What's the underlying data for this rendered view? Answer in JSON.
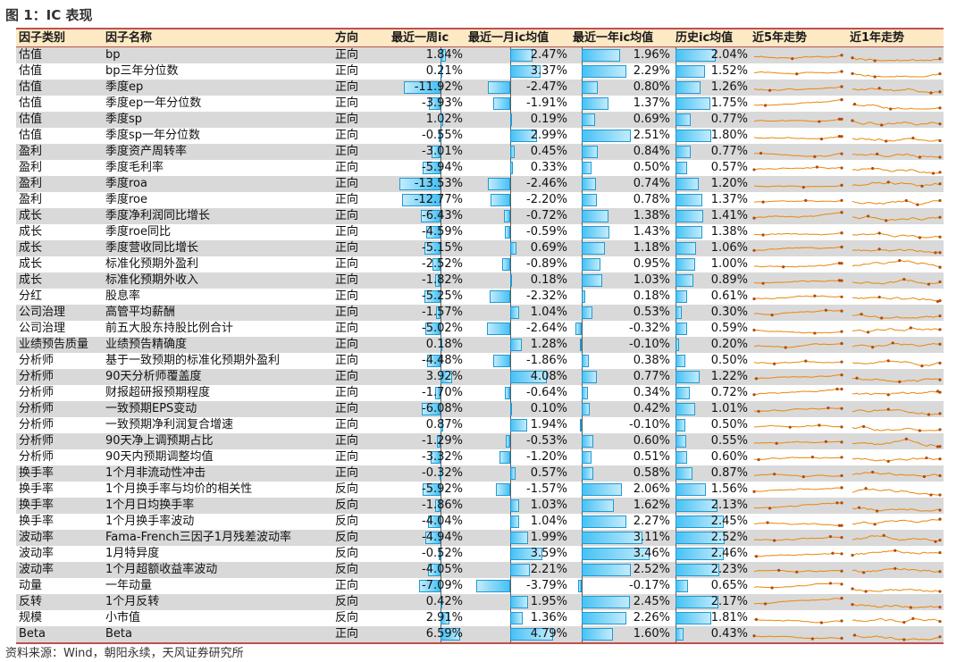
{
  "figure_title": "图 1：IC 表现",
  "source": "资料来源：Wind，朝阳永续，天风证券研究所",
  "colors": {
    "header_bg": "#fde9c4",
    "rule": "#c0504d",
    "bar": "#47c2f5",
    "spark": "#e8880c"
  },
  "headers": {
    "category": "因子类别",
    "name": "因子名称",
    "direction": "方向",
    "week": "最近一周ic",
    "month": "最近一月ic均值",
    "year": "最近一年ic均值",
    "hist": "历史ic均值",
    "trend5": "近5年走势",
    "trend1": "近1年走势"
  },
  "rows": [
    {
      "category": "估值",
      "name": "bp",
      "direction": "正向",
      "week": "1.84%",
      "week_v": 1.84,
      "month": "2.47%",
      "month_v": 2.47,
      "year": "1.96%",
      "year_v": 1.96,
      "hist": "2.04%",
      "hist_v": 2.04
    },
    {
      "category": "估值",
      "name": "bp三年分位数",
      "direction": "正向",
      "week": "0.21%",
      "week_v": 0.21,
      "month": "3.37%",
      "month_v": 3.37,
      "year": "2.29%",
      "year_v": 2.29,
      "hist": "1.52%",
      "hist_v": 1.52
    },
    {
      "category": "估值",
      "name": "季度ep",
      "direction": "正向",
      "week": "-11.92%",
      "week_v": -11.92,
      "month": "-2.47%",
      "month_v": -2.47,
      "year": "0.80%",
      "year_v": 0.8,
      "hist": "1.26%",
      "hist_v": 1.26
    },
    {
      "category": "估值",
      "name": "季度ep一年分位数",
      "direction": "正向",
      "week": "-3.93%",
      "week_v": -3.93,
      "month": "-1.91%",
      "month_v": -1.91,
      "year": "1.37%",
      "year_v": 1.37,
      "hist": "1.75%",
      "hist_v": 1.75
    },
    {
      "category": "估值",
      "name": "季度sp",
      "direction": "正向",
      "week": "1.02%",
      "week_v": 1.02,
      "month": "0.19%",
      "month_v": 0.19,
      "year": "0.69%",
      "year_v": 0.69,
      "hist": "0.77%",
      "hist_v": 0.77
    },
    {
      "category": "估值",
      "name": "季度sp一年分位数",
      "direction": "正向",
      "week": "-0.55%",
      "week_v": -0.55,
      "month": "2.99%",
      "month_v": 2.99,
      "year": "2.51%",
      "year_v": 2.51,
      "hist": "1.80%",
      "hist_v": 1.8
    },
    {
      "category": "盈利",
      "name": "季度资产周转率",
      "direction": "正向",
      "week": "-3.01%",
      "week_v": -3.01,
      "month": "0.45%",
      "month_v": 0.45,
      "year": "0.84%",
      "year_v": 0.84,
      "hist": "0.77%",
      "hist_v": 0.77
    },
    {
      "category": "盈利",
      "name": "季度毛利率",
      "direction": "正向",
      "week": "-5.94%",
      "week_v": -5.94,
      "month": "0.33%",
      "month_v": 0.33,
      "year": "0.50%",
      "year_v": 0.5,
      "hist": "0.57%",
      "hist_v": 0.57
    },
    {
      "category": "盈利",
      "name": "季度roa",
      "direction": "正向",
      "week": "-13.53%",
      "week_v": -13.53,
      "month": "-2.46%",
      "month_v": -2.46,
      "year": "0.74%",
      "year_v": 0.74,
      "hist": "1.20%",
      "hist_v": 1.2
    },
    {
      "category": "盈利",
      "name": "季度roe",
      "direction": "正向",
      "week": "-12.77%",
      "week_v": -12.77,
      "month": "-2.20%",
      "month_v": -2.2,
      "year": "0.78%",
      "year_v": 0.78,
      "hist": "1.37%",
      "hist_v": 1.37
    },
    {
      "category": "成长",
      "name": "季度净利润同比增长",
      "direction": "正向",
      "week": "-6.43%",
      "week_v": -6.43,
      "month": "-0.72%",
      "month_v": -0.72,
      "year": "1.38%",
      "year_v": 1.38,
      "hist": "1.41%",
      "hist_v": 1.41
    },
    {
      "category": "成长",
      "name": "季度roe同比",
      "direction": "正向",
      "week": "-4.59%",
      "week_v": -4.59,
      "month": "-0.59%",
      "month_v": -0.59,
      "year": "1.43%",
      "year_v": 1.43,
      "hist": "1.38%",
      "hist_v": 1.38
    },
    {
      "category": "成长",
      "name": "季度营收同比增长",
      "direction": "正向",
      "week": "-5.15%",
      "week_v": -5.15,
      "month": "0.69%",
      "month_v": 0.69,
      "year": "1.18%",
      "year_v": 1.18,
      "hist": "1.06%",
      "hist_v": 1.06
    },
    {
      "category": "成长",
      "name": "标准化预期外盈利",
      "direction": "正向",
      "week": "-2.52%",
      "week_v": -2.52,
      "month": "-0.89%",
      "month_v": -0.89,
      "year": "0.95%",
      "year_v": 0.95,
      "hist": "1.00%",
      "hist_v": 1.0
    },
    {
      "category": "成长",
      "name": "标准化预期外收入",
      "direction": "正向",
      "week": "-1.82%",
      "week_v": -1.82,
      "month": "0.18%",
      "month_v": 0.18,
      "year": "1.03%",
      "year_v": 1.03,
      "hist": "0.89%",
      "hist_v": 0.89
    },
    {
      "category": "分红",
      "name": "股息率",
      "direction": "正向",
      "week": "-5.25%",
      "week_v": -5.25,
      "month": "-2.32%",
      "month_v": -2.32,
      "year": "0.18%",
      "year_v": 0.18,
      "hist": "0.61%",
      "hist_v": 0.61
    },
    {
      "category": "公司治理",
      "name": "高管平均薪酬",
      "direction": "正向",
      "week": "-1.57%",
      "week_v": -1.57,
      "month": "1.04%",
      "month_v": 1.04,
      "year": "0.53%",
      "year_v": 0.53,
      "hist": "0.30%",
      "hist_v": 0.3
    },
    {
      "category": "公司治理",
      "name": "前五大股东持股比例合计",
      "direction": "正向",
      "week": "-5.02%",
      "week_v": -5.02,
      "month": "-2.64%",
      "month_v": -2.64,
      "year": "-0.32%",
      "year_v": -0.32,
      "hist": "0.59%",
      "hist_v": 0.59
    },
    {
      "category": "业绩预告质量",
      "name": "业绩预告精确度",
      "direction": "正向",
      "week": "0.18%",
      "week_v": 0.18,
      "month": "1.28%",
      "month_v": 1.28,
      "year": "-0.10%",
      "year_v": -0.1,
      "hist": "0.20%",
      "hist_v": 0.2
    },
    {
      "category": "分析师",
      "name": "基于一致预期的标准化预期外盈利",
      "direction": "正向",
      "week": "-4.48%",
      "week_v": -4.48,
      "month": "-1.86%",
      "month_v": -1.86,
      "year": "0.38%",
      "year_v": 0.38,
      "hist": "0.50%",
      "hist_v": 0.5
    },
    {
      "category": "分析师",
      "name": "90天分析师覆盖度",
      "direction": "正向",
      "week": "3.92%",
      "week_v": 3.92,
      "month": "4.08%",
      "month_v": 4.08,
      "year": "0.77%",
      "year_v": 0.77,
      "hist": "1.22%",
      "hist_v": 1.22
    },
    {
      "category": "分析师",
      "name": "财报超研报预期程度",
      "direction": "正向",
      "week": "-1.70%",
      "week_v": -1.7,
      "month": "-0.64%",
      "month_v": -0.64,
      "year": "0.34%",
      "year_v": 0.34,
      "hist": "0.72%",
      "hist_v": 0.72
    },
    {
      "category": "分析师",
      "name": "一致预期EPS变动",
      "direction": "正向",
      "week": "-6.08%",
      "week_v": -6.08,
      "month": "0.10%",
      "month_v": 0.1,
      "year": "0.42%",
      "year_v": 0.42,
      "hist": "1.01%",
      "hist_v": 1.01
    },
    {
      "category": "分析师",
      "name": "一致预期净利润复合增速",
      "direction": "正向",
      "week": "0.87%",
      "week_v": 0.87,
      "month": "1.94%",
      "month_v": 1.94,
      "year": "-0.10%",
      "year_v": -0.1,
      "hist": "0.50%",
      "hist_v": 0.5
    },
    {
      "category": "分析师",
      "name": "90天净上调预期占比",
      "direction": "正向",
      "week": "-1.29%",
      "week_v": -1.29,
      "month": "-0.53%",
      "month_v": -0.53,
      "year": "0.60%",
      "year_v": 0.6,
      "hist": "0.55%",
      "hist_v": 0.55
    },
    {
      "category": "分析师",
      "name": "90天内预期调整均值",
      "direction": "正向",
      "week": "-3.32%",
      "week_v": -3.32,
      "month": "-1.20%",
      "month_v": -1.2,
      "year": "0.51%",
      "year_v": 0.51,
      "hist": "0.60%",
      "hist_v": 0.6
    },
    {
      "category": "换手率",
      "name": "1个月非流动性冲击",
      "direction": "正向",
      "week": "-0.32%",
      "week_v": -0.32,
      "month": "0.57%",
      "month_v": 0.57,
      "year": "0.58%",
      "year_v": 0.58,
      "hist": "0.87%",
      "hist_v": 0.87
    },
    {
      "category": "换手率",
      "name": "1个月换手率与均价的相关性",
      "direction": "反向",
      "week": "-5.92%",
      "week_v": -5.92,
      "month": "-1.57%",
      "month_v": -1.57,
      "year": "2.06%",
      "year_v": 2.06,
      "hist": "1.56%",
      "hist_v": 1.56
    },
    {
      "category": "换手率",
      "name": "1个月日均换手率",
      "direction": "反向",
      "week": "-1.86%",
      "week_v": -1.86,
      "month": "1.03%",
      "month_v": 1.03,
      "year": "1.62%",
      "year_v": 1.62,
      "hist": "2.13%",
      "hist_v": 2.13
    },
    {
      "category": "换手率",
      "name": "1个月换手率波动",
      "direction": "反向",
      "week": "-4.04%",
      "week_v": -4.04,
      "month": "1.04%",
      "month_v": 1.04,
      "year": "2.27%",
      "year_v": 2.27,
      "hist": "2.45%",
      "hist_v": 2.45
    },
    {
      "category": "波动率",
      "name": "Fama-French三因子1月残差波动率",
      "direction": "反向",
      "week": "-4.94%",
      "week_v": -4.94,
      "month": "1.99%",
      "month_v": 1.99,
      "year": "3.11%",
      "year_v": 3.11,
      "hist": "2.52%",
      "hist_v": 2.52
    },
    {
      "category": "波动率",
      "name": "1月特异度",
      "direction": "反向",
      "week": "-0.52%",
      "week_v": -0.52,
      "month": "3.59%",
      "month_v": 3.59,
      "year": "3.46%",
      "year_v": 3.46,
      "hist": "2.46%",
      "hist_v": 2.46
    },
    {
      "category": "波动率",
      "name": "1个月超额收益率波动",
      "direction": "反向",
      "week": "-4.05%",
      "week_v": -4.05,
      "month": "2.21%",
      "month_v": 2.21,
      "year": "2.52%",
      "year_v": 2.52,
      "hist": "2.23%",
      "hist_v": 2.23
    },
    {
      "category": "动量",
      "name": "一年动量",
      "direction": "正向",
      "week": "-7.09%",
      "week_v": -7.09,
      "month": "-3.79%",
      "month_v": -3.79,
      "year": "-0.17%",
      "year_v": -0.17,
      "hist": "0.65%",
      "hist_v": 0.65
    },
    {
      "category": "反转",
      "name": "1个月反转",
      "direction": "反向",
      "week": "0.42%",
      "week_v": 0.42,
      "month": "1.95%",
      "month_v": 1.95,
      "year": "2.45%",
      "year_v": 2.45,
      "hist": "2.17%",
      "hist_v": 2.17
    },
    {
      "category": "规模",
      "name": "小市值",
      "direction": "反向",
      "week": "2.91%",
      "week_v": 2.91,
      "month": "1.36%",
      "month_v": 1.36,
      "year": "2.26%",
      "year_v": 2.26,
      "hist": "1.81%",
      "hist_v": 1.81
    },
    {
      "category": "Beta",
      "name": "Beta",
      "direction": "正向",
      "week": "6.59%",
      "week_v": 6.59,
      "month": "4.79%",
      "month_v": 4.79,
      "year": "1.60%",
      "year_v": 1.6,
      "hist": "0.43%",
      "hist_v": 0.43
    }
  ]
}
